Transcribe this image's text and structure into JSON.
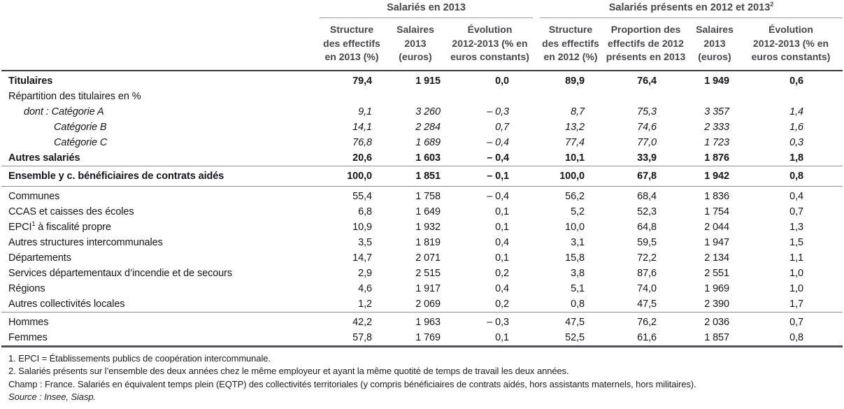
{
  "header": {
    "group1": "Salariés en 2013",
    "group2": "Salariés présents en 2012 et 2013",
    "group2_sup": "2",
    "columns": [
      "Structure\ndes effectifs\nen 2013 (%)",
      "Salaires\n2013\n(euros)",
      "Évolution\n2012-2013 (% en\neuros constants)",
      "Structure\ndes effectifs\nen 2012 (%)",
      "Proportion des\neffectifs de 2012\nprésents en 2013",
      "Salaires\n2013\n(euros)",
      "Évolution\n2012-2013 (% en\neuros constants)"
    ]
  },
  "table": {
    "rows": [
      {
        "id": "titulaires",
        "label": "Titulaires",
        "style": "bold",
        "indent": 0,
        "pad_top": true,
        "values": [
          "79,4",
          "1 915",
          "0,0",
          "89,9",
          "76,4",
          "1 949",
          "0,6"
        ]
      },
      {
        "id": "repartition-titulaires",
        "label": "Répartition des titulaires en %",
        "style": "normal",
        "indent": 0,
        "values": [
          "",
          "",
          "",
          "",
          "",
          "",
          ""
        ]
      },
      {
        "id": "categorie-a",
        "label": "dont : Catégorie A",
        "style": "italic",
        "indent": 1,
        "values": [
          "9,1",
          "3 260",
          "– 0,3",
          "8,7",
          "75,3",
          "3 357",
          "1,4"
        ]
      },
      {
        "id": "categorie-b",
        "label": "Catégorie B",
        "style": "italic",
        "indent": 2,
        "values": [
          "14,1",
          "2 284",
          "0,7",
          "13,2",
          "74,6",
          "2 333",
          "1,6"
        ]
      },
      {
        "id": "categorie-c",
        "label": "Catégorie C",
        "style": "italic",
        "indent": 2,
        "values": [
          "76,8",
          "1 689",
          "– 0,4",
          "77,4",
          "77,0",
          "1 723",
          "0,3"
        ]
      },
      {
        "id": "autres-salaries",
        "label": "Autres salariés",
        "style": "bold",
        "indent": 0,
        "values": [
          "20,6",
          "1 603",
          "– 0,4",
          "10,1",
          "33,9",
          "1 876",
          "1,8"
        ]
      },
      {
        "id": "ensemble",
        "label": "Ensemble y c. bénéficiaires de contrats aidés",
        "style": "bold",
        "indent": 0,
        "rule_top": true,
        "rule_bottom": true,
        "tall": true,
        "values": [
          "100,0",
          "1 851",
          "– 0,1",
          "100,0",
          "67,8",
          "1 942",
          "0,8"
        ]
      },
      {
        "id": "communes",
        "label": "Communes",
        "style": "normal",
        "indent": 0,
        "pad_top": true,
        "values": [
          "55,4",
          "1 758",
          "– 0,4",
          "56,2",
          "68,4",
          "1 836",
          "0,4"
        ]
      },
      {
        "id": "ccas",
        "label": "CCAS et caisses des écoles",
        "style": "normal",
        "indent": 0,
        "values": [
          "6,8",
          "1 649",
          "0,1",
          "5,2",
          "52,3",
          "1 754",
          "0,7"
        ]
      },
      {
        "id": "epci",
        "label_pre": "EPCI",
        "label_sup": "1",
        "label_post": " à fiscalité propre",
        "style": "normal",
        "indent": 0,
        "values": [
          "10,9",
          "1 932",
          "0,1",
          "10,0",
          "64,8",
          "2 044",
          "1,3"
        ]
      },
      {
        "id": "autres-structures-intercommunales",
        "label": "Autres structures intercommunales",
        "style": "normal",
        "indent": 0,
        "values": [
          "3,5",
          "1 819",
          "0,4",
          "3,1",
          "59,5",
          "1 947",
          "1,5"
        ]
      },
      {
        "id": "departements",
        "label": "Départements",
        "style": "normal",
        "indent": 0,
        "values": [
          "14,7",
          "2 071",
          "0,1",
          "15,8",
          "72,2",
          "2 134",
          "1,1"
        ]
      },
      {
        "id": "sdis",
        "label": "Services départementaux d’incendie et de secours",
        "style": "normal",
        "indent": 0,
        "values": [
          "2,9",
          "2 515",
          "0,2",
          "3,8",
          "87,6",
          "2 551",
          "1,0"
        ]
      },
      {
        "id": "regions",
        "label": "Régions",
        "style": "normal",
        "indent": 0,
        "values": [
          "4,6",
          "1 917",
          "0,4",
          "5,1",
          "74,0",
          "1 969",
          "1,0"
        ]
      },
      {
        "id": "autres-collectivites-locales",
        "label": "Autres collectivités locales",
        "style": "normal",
        "indent": 0,
        "values": [
          "1,2",
          "2 069",
          "0,2",
          "0,8",
          "47,5",
          "2 390",
          "1,7"
        ]
      },
      {
        "id": "hommes",
        "label": "Hommes",
        "style": "normal",
        "indent": 0,
        "rule_top": true,
        "pad_top": true,
        "values": [
          "42,2",
          "1 963",
          "– 0,3",
          "47,5",
          "76,2",
          "2 036",
          "0,7"
        ]
      },
      {
        "id": "femmes",
        "label": "Femmes",
        "style": "normal",
        "indent": 0,
        "values": [
          "57,8",
          "1 769",
          "0,1",
          "52,5",
          "61,6",
          "1 857",
          "0,8"
        ]
      }
    ]
  },
  "footnotes": [
    "1. EPCI = Établissements publics de coopération intercommunale.",
    "2. Salariés présents sur l’ensemble des deux années chez le même employeur et ayant la même quotité de temps de travail les deux années.",
    "Champ : France. Salariés en équivalent temps plein (EQTP) des collectivités territoriales (y compris bénéficiaires de contrats aidés, hors assistants maternels, hors militaires).",
    "Source : Insee, Siasp."
  ]
}
